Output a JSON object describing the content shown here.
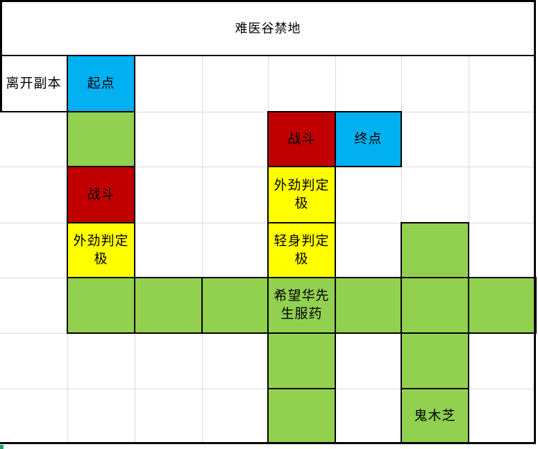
{
  "title": "难医谷禁地",
  "colors": {
    "white": "#ffffff",
    "blue": "#00b0f0",
    "green": "#92d050",
    "red": "#c00000",
    "yellow": "#ffff00",
    "grid_line": "#d9d9d9",
    "border": "#000000",
    "fill_handle": "#21a366"
  },
  "grid": {
    "cells": [
      {
        "row": 1,
        "col": 0,
        "label": "离开副本",
        "fill": "white",
        "name": "cell-leave-dungeon"
      },
      {
        "row": 1,
        "col": 1,
        "label": "起点",
        "fill": "blue",
        "name": "cell-start"
      },
      {
        "row": 2,
        "col": 1,
        "label": "",
        "fill": "green",
        "name": "cell-path"
      },
      {
        "row": 2,
        "col": 4,
        "label": "战斗",
        "fill": "red",
        "name": "cell-battle"
      },
      {
        "row": 2,
        "col": 5,
        "label": "终点",
        "fill": "blue",
        "name": "cell-end"
      },
      {
        "row": 3,
        "col": 1,
        "label": "战斗",
        "fill": "red",
        "name": "cell-battle"
      },
      {
        "row": 3,
        "col": 4,
        "label": "外劲判定极",
        "fill": "yellow",
        "name": "cell-check-waijin"
      },
      {
        "row": 4,
        "col": 1,
        "label": "外劲判定极",
        "fill": "yellow",
        "name": "cell-check-waijin"
      },
      {
        "row": 4,
        "col": 4,
        "label": "轻身判定极",
        "fill": "yellow",
        "name": "cell-check-qingshen"
      },
      {
        "row": 4,
        "col": 6,
        "label": "",
        "fill": "green",
        "name": "cell-path"
      },
      {
        "row": 5,
        "col": 1,
        "label": "",
        "fill": "green",
        "name": "cell-path"
      },
      {
        "row": 5,
        "col": 2,
        "label": "",
        "fill": "green",
        "name": "cell-path"
      },
      {
        "row": 5,
        "col": 3,
        "label": "",
        "fill": "green",
        "name": "cell-path"
      },
      {
        "row": 5,
        "col": 4,
        "label": "希望华先生服药",
        "fill": "green",
        "name": "cell-event-hua-xiansheng"
      },
      {
        "row": 5,
        "col": 5,
        "label": "",
        "fill": "green",
        "name": "cell-path"
      },
      {
        "row": 5,
        "col": 6,
        "label": "",
        "fill": "green",
        "name": "cell-path"
      },
      {
        "row": 5,
        "col": 7,
        "label": "",
        "fill": "green",
        "name": "cell-path"
      },
      {
        "row": 6,
        "col": 4,
        "label": "",
        "fill": "green",
        "name": "cell-path"
      },
      {
        "row": 6,
        "col": 6,
        "label": "",
        "fill": "green",
        "name": "cell-path"
      },
      {
        "row": 7,
        "col": 4,
        "label": "",
        "fill": "green",
        "name": "cell-path"
      },
      {
        "row": 7,
        "col": 6,
        "label": "鬼木芝",
        "fill": "green",
        "name": "cell-item-guimuzhi"
      }
    ]
  }
}
